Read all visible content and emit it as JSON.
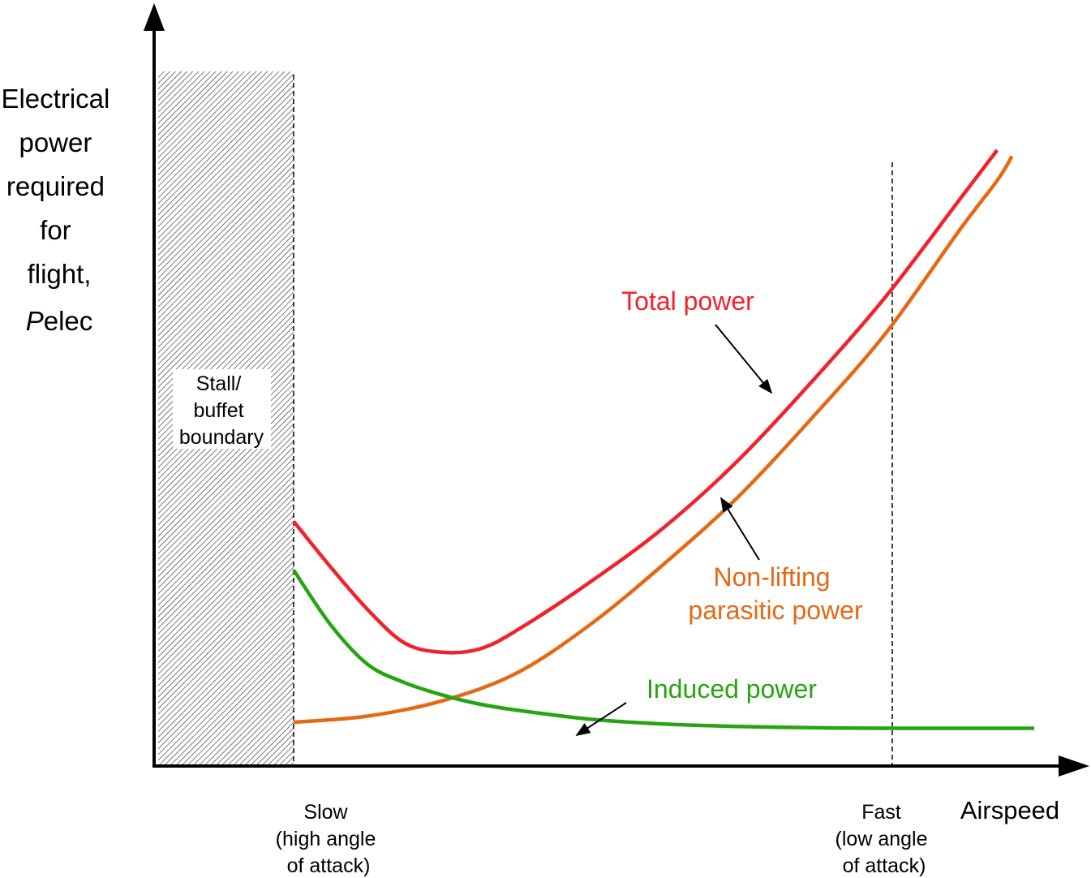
{
  "y_axis": {
    "label_lines": [
      "Electrical",
      "power",
      "required",
      "for",
      "flight,"
    ],
    "symbol": {
      "italic": "P",
      "sub": "elec"
    }
  },
  "x_axis": {
    "label": "Airspeed",
    "slow_note": [
      "Slow",
      "(high angle",
      "of attack)"
    ],
    "fast_note": [
      "Fast",
      "(low angle",
      "of attack)"
    ]
  },
  "stall_region": {
    "label_lines": [
      "Stall/",
      "buffet",
      "boundary"
    ]
  },
  "labels": {
    "total": "Total power",
    "parasitic": [
      "Non-lifting",
      "parasitic power"
    ],
    "induced": "Induced power"
  },
  "colors": {
    "total": "#f2212b",
    "parasitic": "#e56914",
    "induced": "#27a412",
    "axis": "#000000"
  },
  "chart_data": {
    "type": "line",
    "x_range": [
      0,
      1
    ],
    "y_range": [
      0,
      1
    ],
    "series": [
      {
        "name": "Total power",
        "x": [
          0.0,
          0.05,
          0.1,
          0.15,
          0.2,
          0.25,
          0.3,
          0.4,
          0.5,
          0.6,
          0.7,
          0.8,
          0.9,
          0.95
        ],
        "y": [
          0.37,
          0.295,
          0.225,
          0.17,
          0.155,
          0.16,
          0.19,
          0.27,
          0.36,
          0.47,
          0.6,
          0.74,
          0.9,
          0.98
        ]
      },
      {
        "name": "Non-lifting parasitic power",
        "x": [
          0.0,
          0.1,
          0.2,
          0.3,
          0.4,
          0.5,
          0.6,
          0.7,
          0.8,
          0.9,
          0.95,
          0.97
        ],
        "y": [
          0.04,
          0.05,
          0.075,
          0.12,
          0.2,
          0.3,
          0.41,
          0.54,
          0.68,
          0.85,
          0.93,
          0.97
        ]
      },
      {
        "name": "Induced power",
        "x": [
          0.0,
          0.05,
          0.1,
          0.15,
          0.2,
          0.25,
          0.3,
          0.4,
          0.5,
          0.6,
          0.7,
          0.8,
          0.9,
          1.0
        ],
        "y": [
          0.29,
          0.2,
          0.135,
          0.105,
          0.085,
          0.07,
          0.06,
          0.045,
          0.037,
          0.033,
          0.031,
          0.03,
          0.03,
          0.03
        ]
      }
    ]
  }
}
